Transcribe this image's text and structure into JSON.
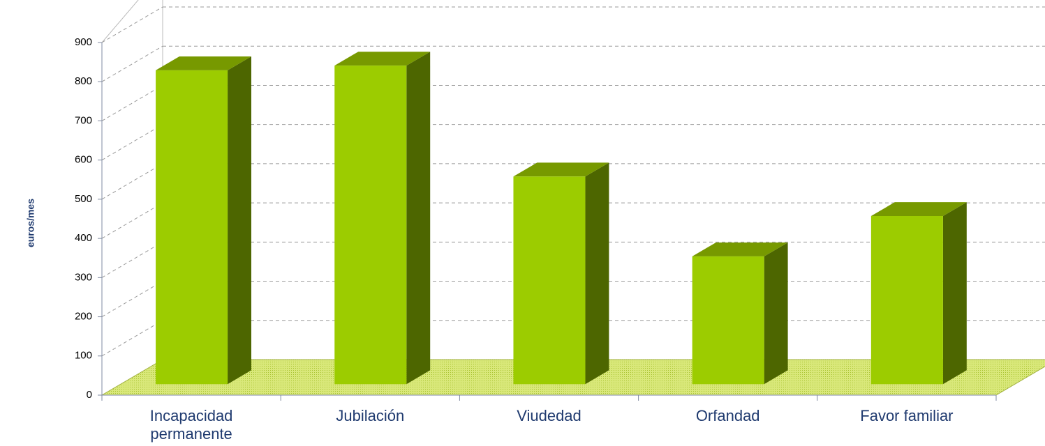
{
  "chart_data": {
    "type": "bar3d",
    "y_label": "euros/mes",
    "categories": [
      "Incapacidad permanente",
      "Jubilación",
      "Viudedad",
      "Orfandad",
      "Favor familiar"
    ],
    "values": [
      801,
      813,
      530,
      326,
      429
    ],
    "color": "#9ccc00",
    "ylim": [
      0,
      900
    ],
    "yticks": [
      0,
      100,
      200,
      300,
      400,
      500,
      600,
      700,
      800,
      900
    ],
    "grid": true
  }
}
